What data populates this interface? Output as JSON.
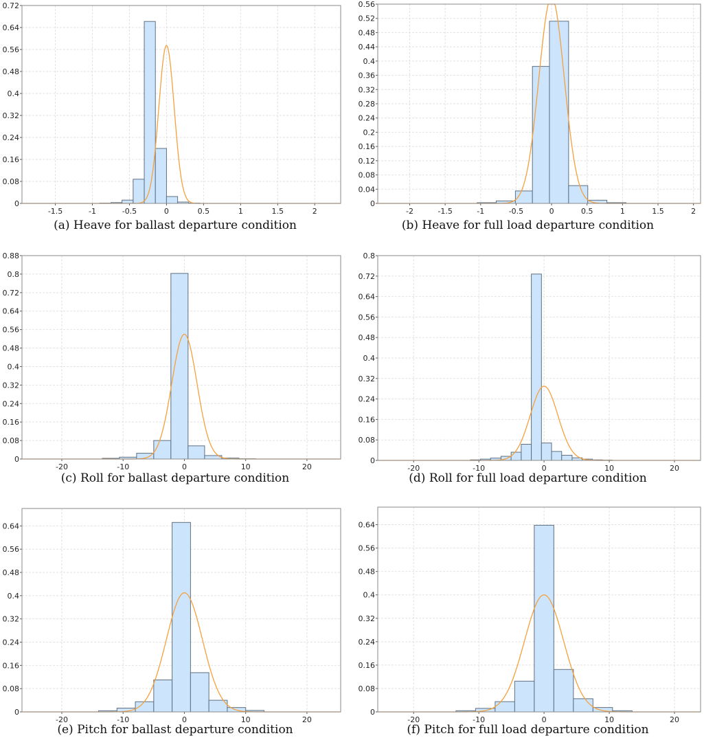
{
  "chart_data": [
    {
      "type": "bar",
      "subtype": "histogram-with-normal-fit",
      "caption": "(a)  Heave  for  ballast  departure  condition",
      "xlim": [
        -1.95,
        2.35
      ],
      "ylim": [
        0,
        0.72
      ],
      "xticks": [
        -1.5,
        -1,
        -0.5,
        0,
        0.5,
        1,
        1.5,
        2
      ],
      "xtick_labels": [
        "-1.5",
        "-1",
        "-0.5",
        "0",
        "0.5",
        "1",
        "1.5",
        "2"
      ],
      "yticks": [
        0,
        0.08,
        0.16,
        0.24,
        0.32,
        0.4,
        0.48,
        0.56,
        0.64,
        0.72
      ],
      "ytick_labels": [
        "0",
        "0.08",
        "0.16",
        "0.24",
        "0.32",
        "0.4",
        "0.48",
        "0.56",
        "0.64",
        "0.72"
      ],
      "bin_edges": [
        -0.9,
        -0.75,
        -0.6,
        -0.45,
        -0.3,
        -0.15,
        0,
        0.15,
        0.3,
        0.45,
        0.6,
        0.75
      ],
      "values": [
        0.001,
        0.003,
        0.012,
        0.088,
        0.662,
        0.2,
        0.025,
        0.005,
        0.001,
        0,
        0
      ],
      "bin_width": 0.15,
      "fit": {
        "mean": 0.0,
        "peak": 0.575
      },
      "grid": true,
      "colors": {
        "bar_fill": "#cce5fc",
        "bar_stroke": "#5f6f80",
        "fit_line": "#f5a03c",
        "grid": "#e2e2e2",
        "frame": "#8a8a8a"
      }
    },
    {
      "type": "bar",
      "subtype": "histogram-with-normal-fit",
      "caption": "(b)  Heave  for  full  load  departure  condition",
      "xlim": [
        -2.45,
        2.1
      ],
      "ylim": [
        0,
        0.56
      ],
      "xticks": [
        -2,
        -1.5,
        -1,
        -0.5,
        0,
        0.5,
        1,
        1.5,
        2
      ],
      "xtick_labels": [
        "-2",
        "-1.5",
        "-1",
        "-0.5",
        "0",
        "0.5",
        "1",
        "1.5",
        "2"
      ],
      "yticks": [
        0,
        0.04,
        0.08,
        0.12,
        0.16,
        0.2,
        0.24,
        0.28,
        0.32,
        0.36,
        0.4,
        0.44,
        0.48,
        0.52,
        0.56
      ],
      "ytick_labels": [
        "0",
        "0.04",
        "0.08",
        "0.12",
        "0.16",
        "0.2",
        "0.24",
        "0.28",
        "0.32",
        "0.36",
        "0.4",
        "0.44",
        "0.48",
        "0.52",
        "0.56"
      ],
      "bin_edges": [
        -1.05,
        -0.78,
        -0.51,
        -0.27,
        -0.03,
        0.24,
        0.51,
        0.78,
        1.05
      ],
      "values": [
        0.002,
        0.007,
        0.035,
        0.385,
        0.512,
        0.05,
        0.009,
        0.002
      ],
      "bin_width": 0.26,
      "fit": {
        "mean": 0.0,
        "peak": 0.58
      },
      "grid": true,
      "colors": {
        "bar_fill": "#cce5fc",
        "bar_stroke": "#5f6f80",
        "fit_line": "#f5a03c",
        "grid": "#e2e2e2",
        "frame": "#8a8a8a"
      }
    },
    {
      "type": "bar",
      "subtype": "histogram-with-normal-fit",
      "caption": "(c)  Roll  for  ballast  departure  condition",
      "xlim": [
        -26.5,
        25.5
      ],
      "ylim": [
        0,
        0.88
      ],
      "xticks": [
        -20,
        -10,
        0,
        10,
        20
      ],
      "xtick_labels": [
        "-20",
        "-10",
        "0",
        "10",
        "20"
      ],
      "yticks": [
        0,
        0.08,
        0.16,
        0.24,
        0.32,
        0.4,
        0.48,
        0.56,
        0.64,
        0.72,
        0.8,
        0.88
      ],
      "ytick_labels": [
        "0",
        "0.08",
        "0.16",
        "0.24",
        "0.32",
        "0.4",
        "0.48",
        "0.56",
        "0.64",
        "0.72",
        "0.8",
        "0.88"
      ],
      "bin_edges": [
        -13.4,
        -10.6,
        -7.8,
        -5.0,
        -2.2,
        0.6,
        3.3,
        6.1,
        8.9,
        11.7
      ],
      "values": [
        0.003,
        0.008,
        0.025,
        0.08,
        0.803,
        0.057,
        0.015,
        0.004,
        0.001
      ],
      "bin_width": 2.8,
      "fit": {
        "mean": 0.0,
        "peak": 0.54
      },
      "grid": true,
      "colors": {
        "bar_fill": "#cce5fc",
        "bar_stroke": "#5f6f80",
        "fit_line": "#f5a03c",
        "grid": "#e2e2e2",
        "frame": "#8a8a8a"
      }
    },
    {
      "type": "bar",
      "subtype": "histogram-with-normal-fit",
      "caption": "(d)  Roll  for  full  load  departure  condition",
      "xlim": [
        -25.5,
        24.0
      ],
      "ylim": [
        0,
        0.8
      ],
      "xticks": [
        -20,
        -10,
        0,
        10,
        20
      ],
      "xtick_labels": [
        "-20",
        "-10",
        "0",
        "10",
        "20"
      ],
      "yticks": [
        0,
        0.08,
        0.16,
        0.24,
        0.32,
        0.4,
        0.48,
        0.56,
        0.64,
        0.72,
        0.8
      ],
      "ytick_labels": [
        "0",
        "0.08",
        "0.16",
        "0.24",
        "0.32",
        "0.4",
        "0.48",
        "0.56",
        "0.64",
        "0.72",
        "0.8"
      ],
      "bin_edges": [
        -11.3,
        -9.75,
        -8.2,
        -6.6,
        -5.05,
        -3.5,
        -1.95,
        -0.4,
        1.15,
        2.7,
        4.3,
        5.85,
        7.4,
        8.95,
        10.5
      ],
      "values": [
        0.002,
        0.005,
        0.009,
        0.016,
        0.032,
        0.063,
        0.728,
        0.068,
        0.035,
        0.02,
        0.01,
        0.005,
        0.002,
        0.001
      ],
      "bin_width": 1.55,
      "fit": {
        "mean": 0.0,
        "peak": 0.29
      },
      "grid": true,
      "colors": {
        "bar_fill": "#cce5fc",
        "bar_stroke": "#5f6f80",
        "fit_line": "#f5a03c",
        "grid": "#e2e2e2",
        "frame": "#8a8a8a"
      }
    },
    {
      "type": "bar",
      "subtype": "histogram-with-normal-fit",
      "caption": "(e)  Pitch  for  ballast  departure  condition",
      "xlim": [
        -26.5,
        25.5
      ],
      "ylim": [
        0,
        0.7
      ],
      "xticks": [
        -20,
        -10,
        0,
        10,
        20
      ],
      "xtick_labels": [
        "-20",
        "-10",
        "0",
        "10",
        "20"
      ],
      "yticks": [
        0,
        0.08,
        0.16,
        0.24,
        0.32,
        0.4,
        0.48,
        0.56,
        0.64
      ],
      "ytick_labels": [
        "0",
        "0.08",
        "0.16",
        "0.24",
        "0.32",
        "0.4",
        "0.48",
        "0.56",
        "0.64"
      ],
      "bin_edges": [
        -14.0,
        -11.0,
        -8.0,
        -5.0,
        -2.0,
        1.0,
        4.0,
        7.0,
        10.0,
        13.0
      ],
      "values": [
        0.004,
        0.013,
        0.035,
        0.11,
        0.652,
        0.135,
        0.04,
        0.015,
        0.005
      ],
      "bin_width": 3.0,
      "fit": {
        "mean": 0.0,
        "peak": 0.41
      },
      "grid": true,
      "colors": {
        "bar_fill": "#cce5fc",
        "bar_stroke": "#5f6f80",
        "fit_line": "#f5a03c",
        "grid": "#e2e2e2",
        "frame": "#8a8a8a"
      }
    },
    {
      "type": "bar",
      "subtype": "histogram-with-normal-fit",
      "caption": "(f)  Pitch  for  full  load  departure  condition",
      "xlim": [
        -25.5,
        24.0
      ],
      "ylim": [
        0,
        0.7
      ],
      "xticks": [
        -20,
        -10,
        0,
        10,
        20
      ],
      "xtick_labels": [
        "-20",
        "-10",
        "0",
        "10",
        "20"
      ],
      "yticks": [
        0,
        0.08,
        0.16,
        0.24,
        0.32,
        0.4,
        0.48,
        0.56,
        0.64
      ],
      "ytick_labels": [
        "0",
        "0.08",
        "0.16",
        "0.24",
        "0.32",
        "0.4",
        "0.48",
        "0.56",
        "0.64"
      ],
      "bin_edges": [
        -13.5,
        -10.5,
        -7.5,
        -4.5,
        -1.5,
        1.5,
        4.5,
        7.5,
        10.5,
        13.5
      ],
      "values": [
        0.004,
        0.012,
        0.035,
        0.105,
        0.638,
        0.145,
        0.045,
        0.015,
        0.004
      ],
      "bin_width": 3.0,
      "fit": {
        "mean": 0.0,
        "peak": 0.4
      },
      "grid": true,
      "colors": {
        "bar_fill": "#cce5fc",
        "bar_stroke": "#5f6f80",
        "fit_line": "#f5a03c",
        "grid": "#e2e2e2",
        "frame": "#8a8a8a"
      }
    }
  ]
}
